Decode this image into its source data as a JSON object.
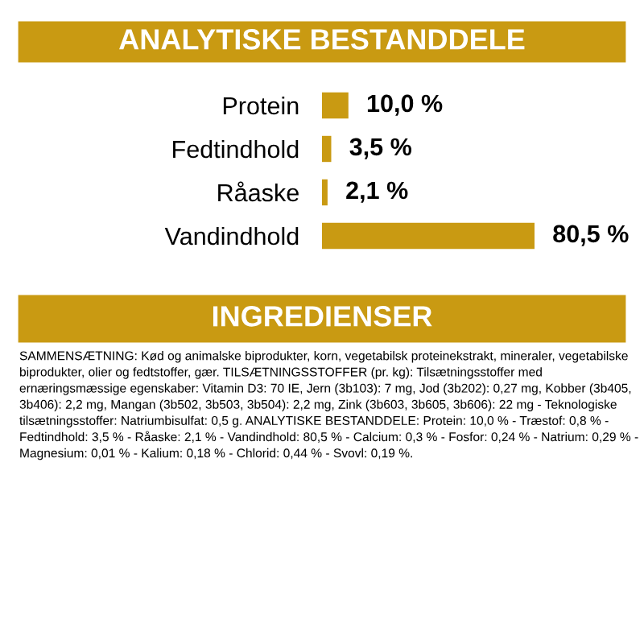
{
  "chart_data": {
    "type": "bar",
    "orientation": "horizontal",
    "title": "ANALYTISKE BESTANDDELE",
    "categories": [
      "Protein",
      "Fedtindhold",
      "Råaske",
      "Vandindhold"
    ],
    "values": [
      10.0,
      3.5,
      2.1,
      80.5
    ],
    "color": "#c99a12",
    "value_labels": [
      "10,0 %",
      "3,5 %",
      "2,1 %",
      "80,5 %"
    ],
    "annotations": [
      "INGREDIENSER",
      "SAMMENSÆTNING: Kød og animalske biprodukter, korn, vegetabilsk proteinekstrakt, mineraler, vegetabilske biprodukter, olier og fedtstoffer, gær. TILSÆTNINGSSTOFFER (pr. kg): Tilsætningsstoffer med ernæringsmæssige egenskaber: Vitamin D3: 70 IE, Jern (3b103): 7 mg, Jod (3b202): 0,27 mg, Kobber (3b405, 3b406): 2,2 mg, Mangan (3b502, 3b503, 3b504): 2,2 mg, Zink (3b603, 3b605, 3b606): 22 mg - Teknologiske tilsætningsstoffer: Natriumbisulfat: 0,5 g. ANALYTISKE BESTANDDELE: Protein: 10,0 % - Træstof: 0,8 % - Fedtindhold: 3,5 % - Råaske: 2,1 % - Vandindhold: 80,5 % - Calcium: 0,3 % - Fosfor: 0,24 % - Natrium: 0,29 % - Magnesium: 0,01 % - Kalium: 0,18 % - Chlorid: 0,44 % - Svovl: 0,19 %."
    ]
  }
}
